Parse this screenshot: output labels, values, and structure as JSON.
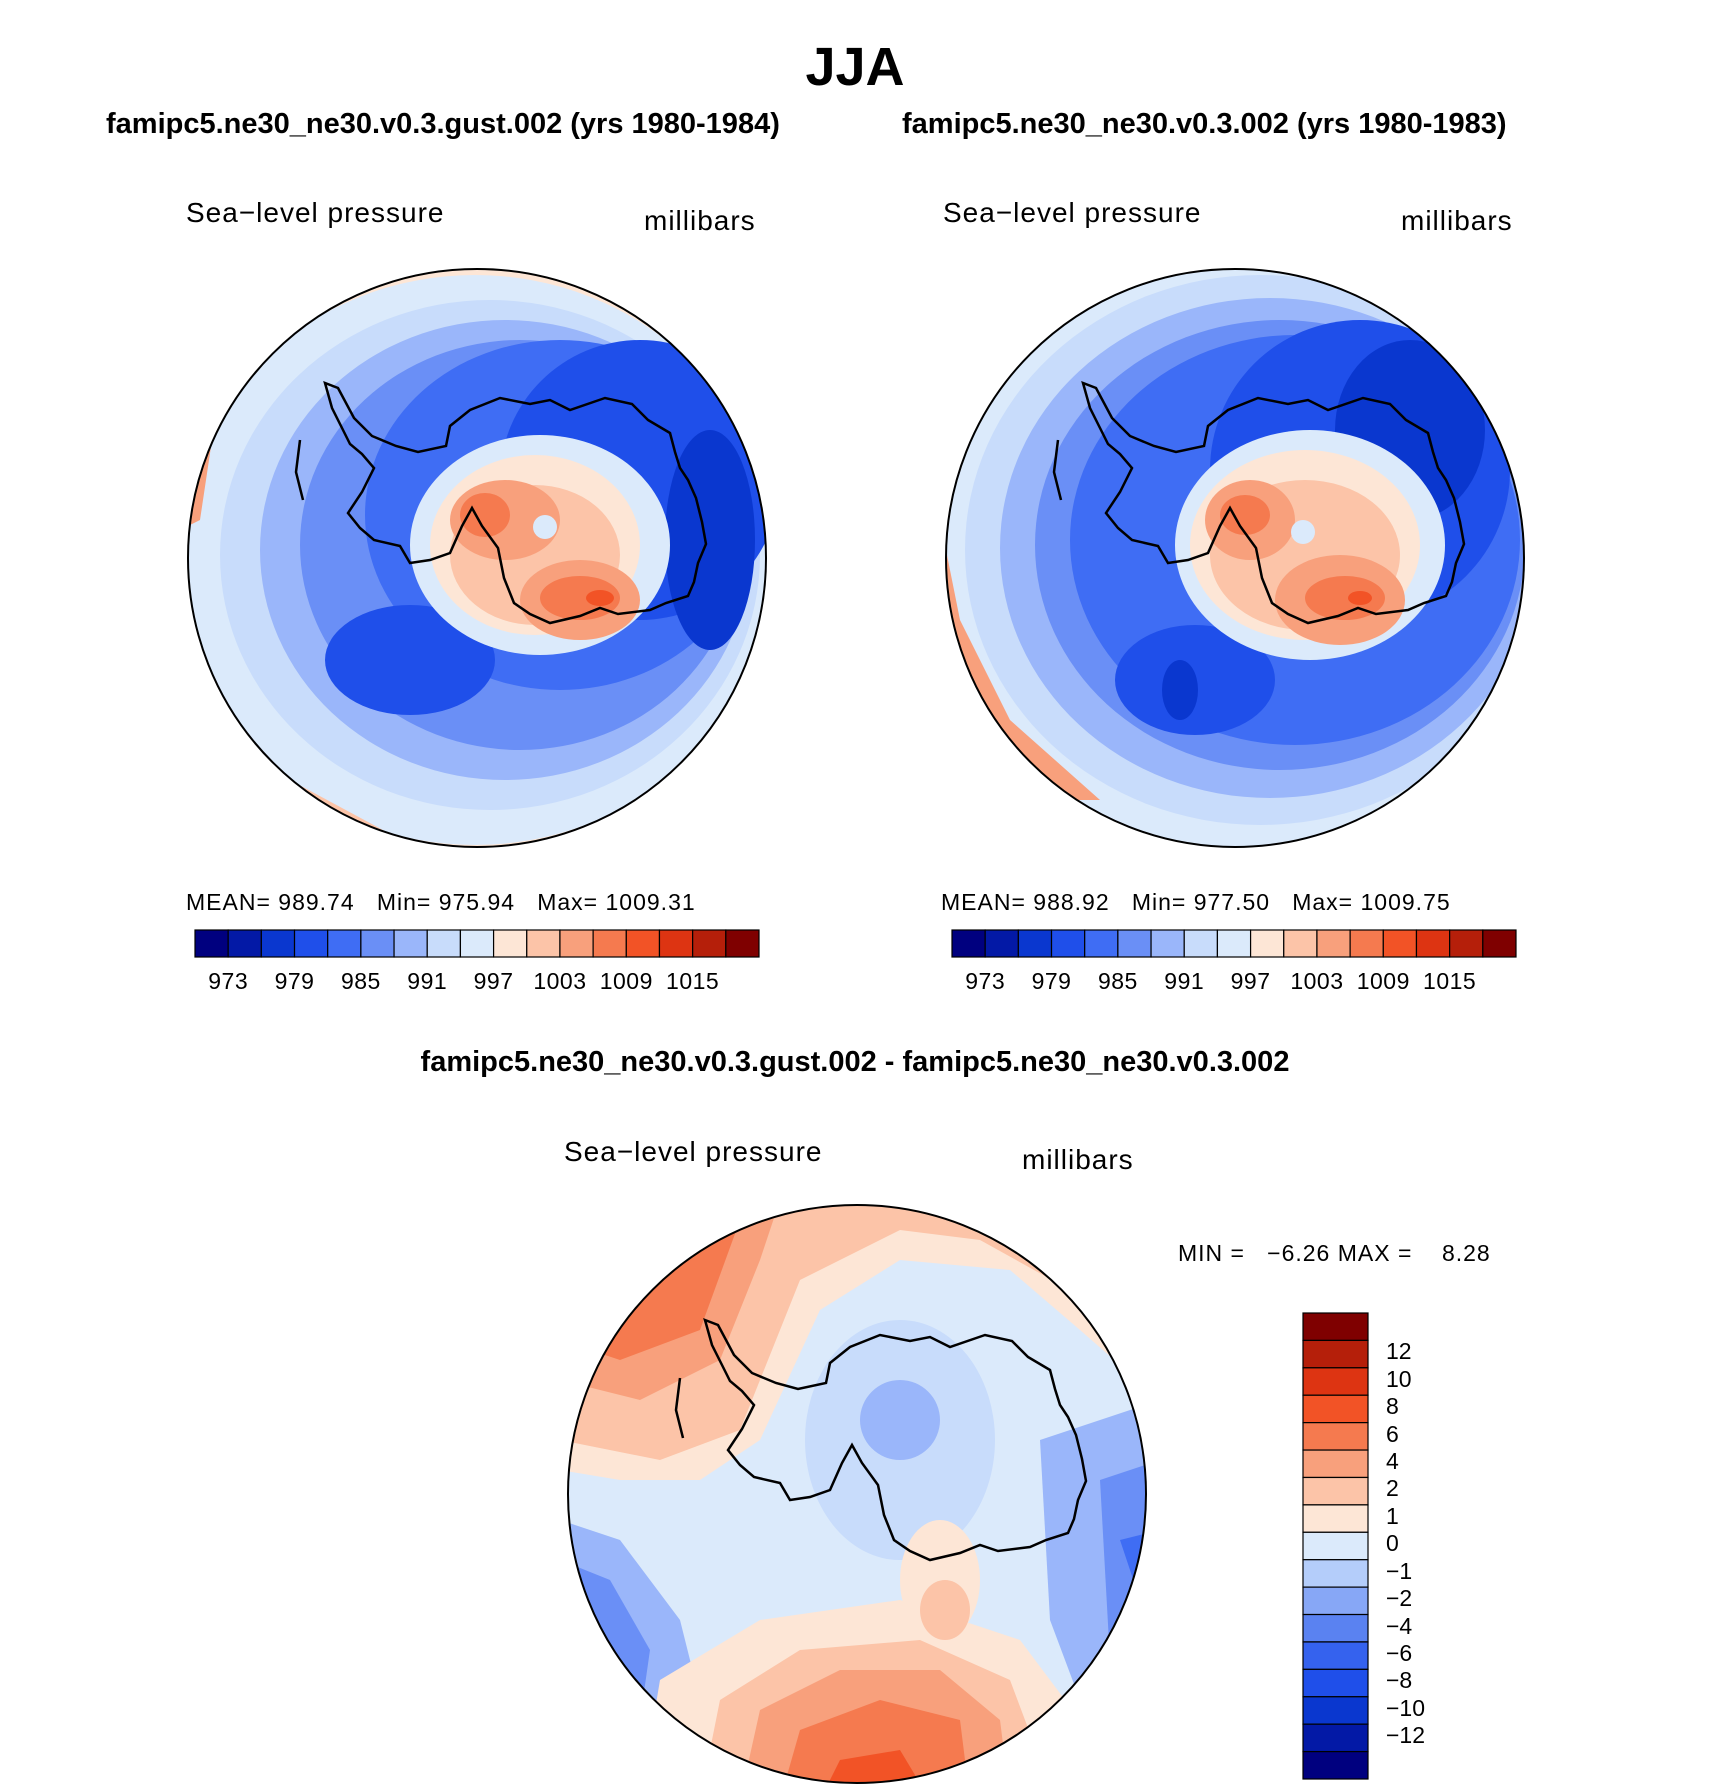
{
  "title": "JJA",
  "panels": [
    {
      "case_title": "famipc5.ne30_ne30.v0.3.gust.002 (yrs 1980-1984)",
      "field": "Sea−level pressure",
      "units": "millibars",
      "stats": {
        "mean_label": "MEAN=",
        "mean": "989.74",
        "min_label": "Min=",
        "min": "975.94",
        "max_label": "Max=",
        "max": "1009.31"
      }
    },
    {
      "case_title": "famipc5.ne30_ne30.v0.3.002 (yrs 1980-1983)",
      "field": "Sea−level pressure",
      "units": "millibars",
      "stats": {
        "mean_label": "MEAN=",
        "mean": "988.92",
        "min_label": "Min=",
        "min": "977.50",
        "max_label": "Max=",
        "max": "1009.75"
      }
    }
  ],
  "abs_colorbar": {
    "colors": [
      "#00007f",
      "#0319a6",
      "#0a37cf",
      "#1f4fea",
      "#3f6df4",
      "#6a8ff6",
      "#9ab6fa",
      "#c8dcfb",
      "#dbeafb",
      "#fde6d6",
      "#fcc4a8",
      "#f8a07c",
      "#f57a4f",
      "#f25326",
      "#dd3412",
      "#b51f0a",
      "#7f0000"
    ],
    "labels": [
      "973",
      "979",
      "985",
      "991",
      "997",
      "1003",
      "1009",
      "1015"
    ]
  },
  "diff": {
    "title": "famipc5.ne30_ne30.v0.3.gust.002 - famipc5.ne30_ne30.v0.3.002",
    "field": "Sea−level pressure",
    "units": "millibars",
    "minmax_text": "MIN =   −6.26 MAX =    8.28",
    "colorbar": {
      "colors_top_to_bottom": [
        "#7f0000",
        "#b51f0a",
        "#dd3412",
        "#f25326",
        "#f57a4f",
        "#f8a07c",
        "#fcc4a8",
        "#fde6d6",
        "#dbeafb",
        "#b4cdfa",
        "#87a7f6",
        "#5a82f1",
        "#3562ee",
        "#1f4fea",
        "#0a37cf",
        "#0319a6",
        "#00007f"
      ],
      "labels": [
        "12",
        "10",
        "8",
        "6",
        "4",
        "2",
        "1",
        "0",
        "−1",
        "−2",
        "−4",
        "−6",
        "−8",
        "−10",
        "−12"
      ]
    }
  },
  "palette": {
    "dark_blue": "#0a37cf",
    "blue": "#1f4fea",
    "mid_blue": "#3f6df4",
    "light_blue": "#6a8ff6",
    "pale_blue": "#9ab6fa",
    "very_pale_blue": "#c8dcfb",
    "ice": "#dbeafb",
    "cream": "#fde6d6",
    "peach": "#fcc4a8",
    "salmon": "#f8a07c",
    "orange": "#f57a4f",
    "red_orange": "#f25326",
    "red": "#dd3412"
  }
}
